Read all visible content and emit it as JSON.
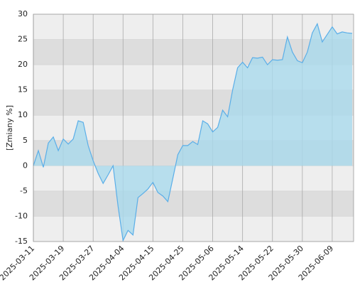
{
  "chart_data": {
    "type": "area",
    "y_label": "[Zmiany %]",
    "categories": [
      "2025-03-11",
      null,
      null,
      null,
      null,
      null,
      "2025-03-19",
      null,
      null,
      null,
      null,
      null,
      "2025-03-27",
      null,
      null,
      null,
      null,
      null,
      "2025-04-04",
      null,
      null,
      null,
      null,
      null,
      "2025-04-15",
      null,
      null,
      null,
      null,
      null,
      "2025-04-25",
      null,
      null,
      null,
      null,
      null,
      "2025-05-06",
      null,
      null,
      null,
      null,
      null,
      "2025-05-14",
      null,
      null,
      null,
      null,
      null,
      "2025-05-22",
      null,
      null,
      null,
      null,
      null,
      "2025-05-30",
      null,
      null,
      null,
      null,
      null,
      "2025-06-09",
      null,
      null,
      null,
      null
    ],
    "values": [
      0,
      3,
      -0.3,
      4.5,
      5.7,
      3,
      5.3,
      4.3,
      5.3,
      8.9,
      8.6,
      4,
      1,
      -1.5,
      -3.5,
      -1.8,
      0,
      -8,
      -14.8,
      -12.8,
      -13.7,
      -6.3,
      -5.5,
      -4.6,
      -3.3,
      -5.3,
      -6,
      -7.1,
      -2.5,
      2.2,
      4,
      4,
      4.8,
      4.2,
      8.9,
      8.3,
      6.7,
      7.6,
      11,
      9.7,
      15,
      19.4,
      20.5,
      19.4,
      21.4,
      21.3,
      21.5,
      20,
      21,
      20.9,
      21,
      25.5,
      22.5,
      20.8,
      20.4,
      22.5,
      26.3,
      28.1,
      24.5,
      26,
      27.5,
      26.1,
      26.5,
      26.3,
      26.2
    ],
    "color": "#5aaee8",
    "fill": "#a9d9ec",
    "ylim": [
      -15,
      30
    ],
    "yticks": [
      -15,
      -10,
      -5,
      0,
      5,
      10,
      15,
      20,
      25,
      30
    ],
    "bands": [
      "#eeeeee",
      "#dddddd"
    ],
    "grid": true
  }
}
